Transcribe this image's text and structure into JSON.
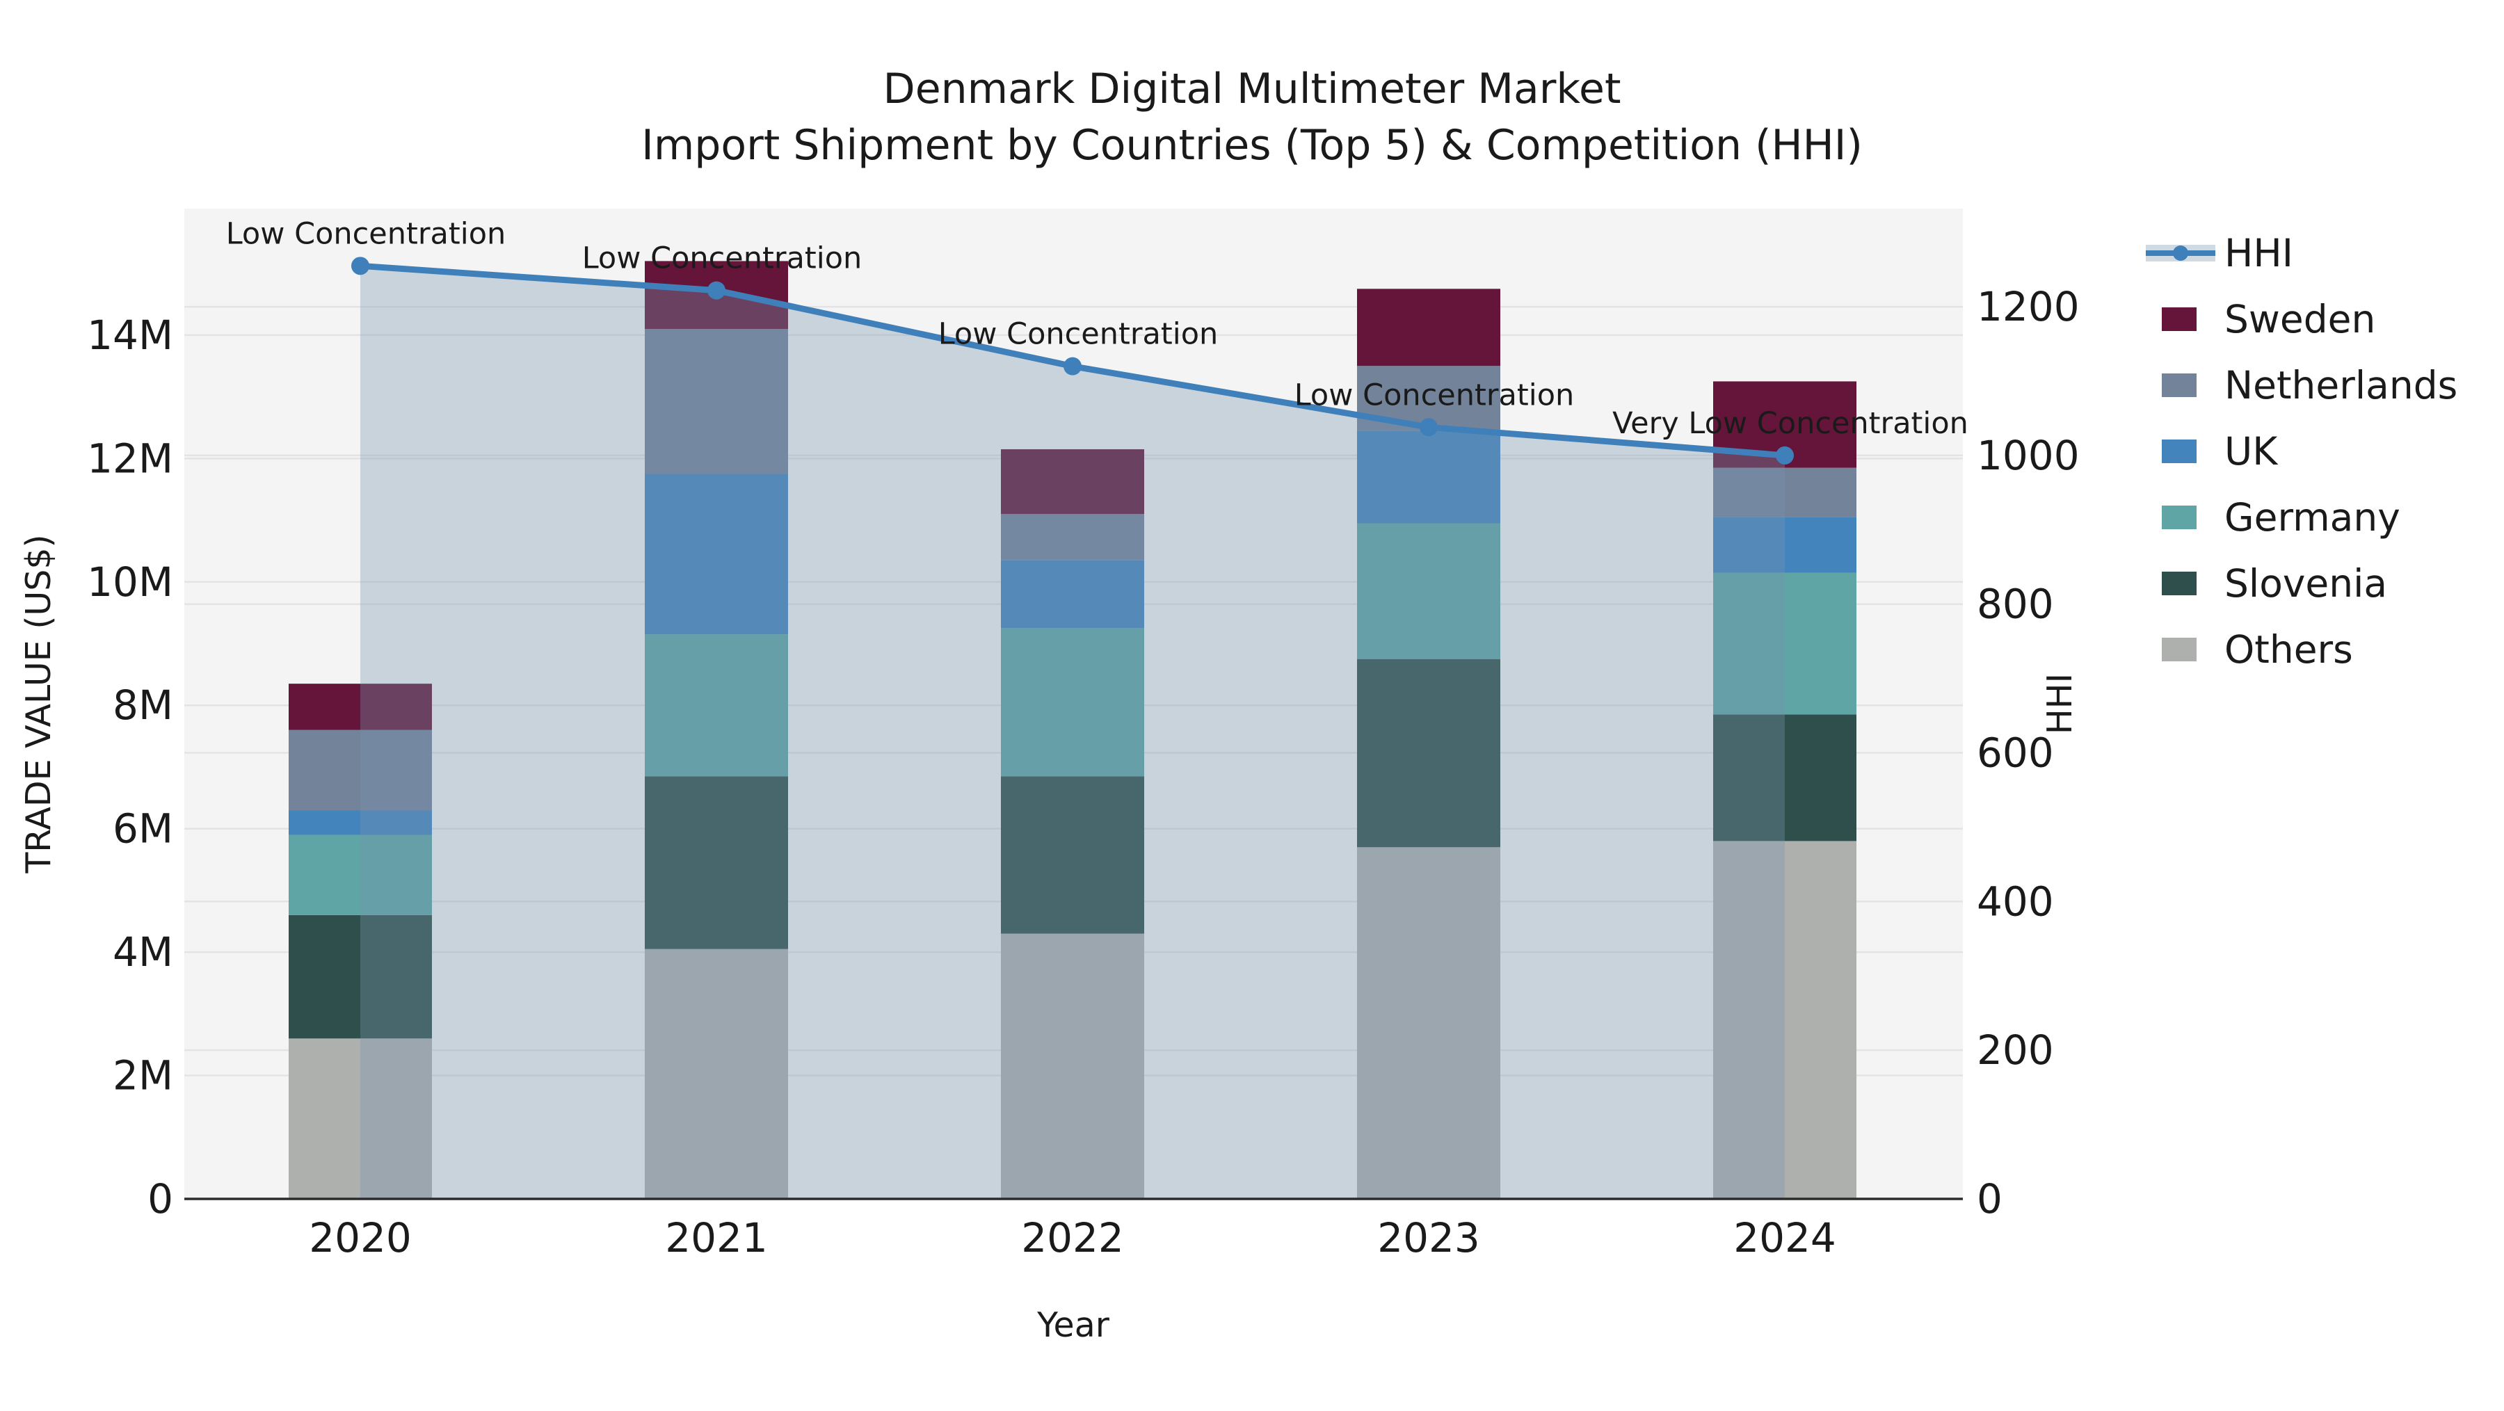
{
  "title": {
    "line1": "Denmark Digital Multimeter Market",
    "line2": "Import Shipment by Countries (Top 5) & Competition (HHI)"
  },
  "chart_data": {
    "type": "bar",
    "subtype": "stacked-bar-with-line-overlay",
    "categories": [
      "2020",
      "2021",
      "2022",
      "2023",
      "2024"
    ],
    "series": [
      {
        "name": "Others",
        "color": "#aeb0ae",
        "values": [
          2600000,
          4050000,
          4300000,
          5700000,
          5800000
        ]
      },
      {
        "name": "Slovenia",
        "color": "#2e4f4b",
        "values": [
          2000000,
          2800000,
          2550000,
          3050000,
          2050000
        ]
      },
      {
        "name": "Germany",
        "color": "#5fa5a5",
        "values": [
          1300000,
          2300000,
          2400000,
          2200000,
          2300000
        ]
      },
      {
        "name": "UK",
        "color": "#4384bd",
        "values": [
          400000,
          2600000,
          1100000,
          1500000,
          900000
        ]
      },
      {
        "name": "Netherlands",
        "color": "#72839a",
        "values": [
          1300000,
          2350000,
          750000,
          1050000,
          800000
        ]
      },
      {
        "name": "Sweden",
        "color": "#641539",
        "values": [
          750000,
          1100000,
          1050000,
          1250000,
          1400000
        ]
      }
    ],
    "line_series": {
      "name": "HHI",
      "color": "#4080ba",
      "area_fill": "rgba(120,150,175,0.35)",
      "values": [
        1255,
        1222,
        1120,
        1038,
        1000
      ]
    },
    "annotations": [
      "Low Concentration",
      "Low Concentration",
      "Low Concentration",
      "Low Concentration",
      "Very Low Concentration"
    ],
    "xlabel": "Year",
    "ylabel_left": "TRADE VALUE (US$)",
    "ylabel_right": "HHI",
    "y_left_max": 16050000,
    "y_right_max": 1332,
    "y_left_ticks": [
      {
        "v": 0,
        "label": "0"
      },
      {
        "v": 2000000,
        "label": "2M"
      },
      {
        "v": 4000000,
        "label": "4M"
      },
      {
        "v": 6000000,
        "label": "6M"
      },
      {
        "v": 8000000,
        "label": "8M"
      },
      {
        "v": 10000000,
        "label": "10M"
      },
      {
        "v": 12000000,
        "label": "12M"
      },
      {
        "v": 14000000,
        "label": "14M"
      }
    ],
    "y_right_ticks": [
      {
        "v": 0,
        "label": "0"
      },
      {
        "v": 200,
        "label": "200"
      },
      {
        "v": 400,
        "label": "400"
      },
      {
        "v": 600,
        "label": "600"
      },
      {
        "v": 800,
        "label": "800"
      },
      {
        "v": 1000,
        "label": "1000"
      },
      {
        "v": 1200,
        "label": "1200"
      }
    ],
    "legend": [
      {
        "label": "HHI",
        "type": "line"
      },
      {
        "label": "Sweden",
        "type": "patch"
      },
      {
        "label": "Netherlands",
        "type": "patch"
      },
      {
        "label": "UK",
        "type": "patch"
      },
      {
        "label": "Germany",
        "type": "patch"
      },
      {
        "label": "Slovenia",
        "type": "patch"
      },
      {
        "label": "Others",
        "type": "patch"
      }
    ],
    "grid": true,
    "legend_position": "right-top-outside",
    "colors": {
      "plot_bg": "#f4f4f5",
      "grid": "#e3e3e6",
      "axis": "#2b2b2b",
      "text": "#1a1a1a"
    }
  }
}
